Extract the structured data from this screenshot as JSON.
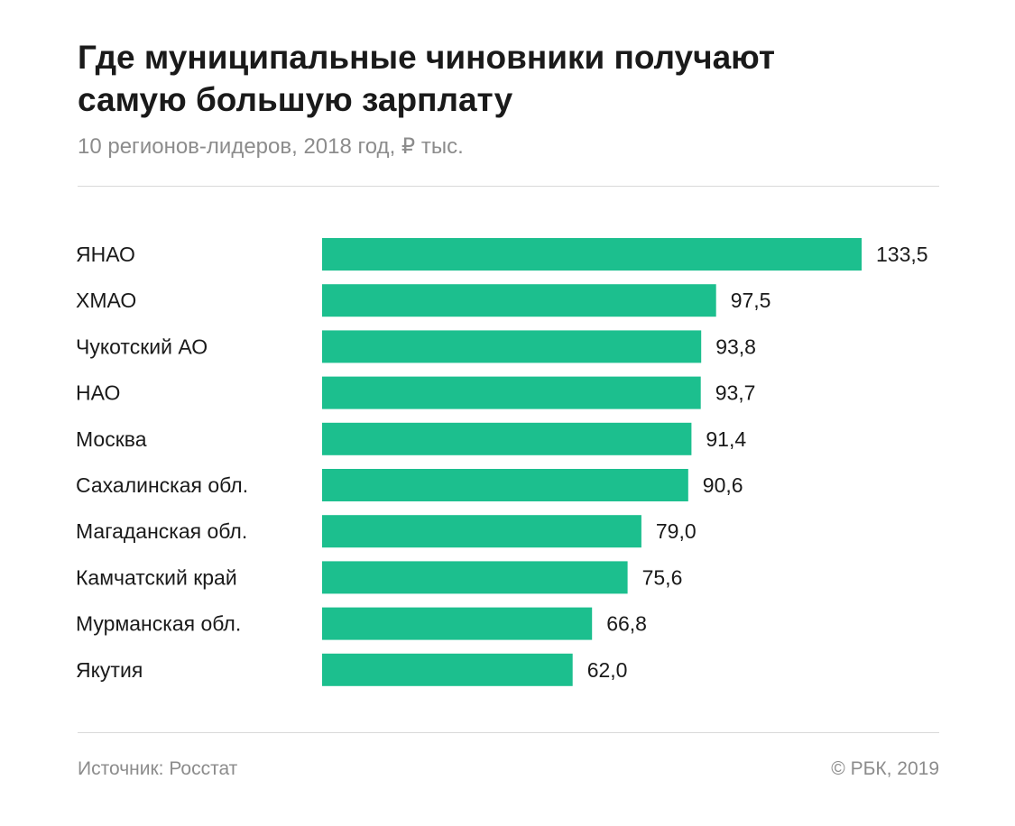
{
  "header": {
    "title_line1": "Где муниципальные чиновники получают",
    "title_line2": "самую большую зарплату",
    "subtitle": "10 регионов-лидеров, 2018 год, ₽ тыс."
  },
  "chart_data": {
    "type": "bar",
    "orientation": "horizontal",
    "title": "Где муниципальные чиновники получают самую большую зарплату",
    "subtitle": "10 регионов-лидеров, 2018 год, ₽ тыс.",
    "categories": [
      "ЯНАО",
      "ХМАО",
      "Чукотский АО",
      "НАО",
      "Москва",
      "Сахалинская обл.",
      "Магаданская обл.",
      "Камчатский край",
      "Мурманская обл.",
      "Якутия"
    ],
    "values": [
      133.5,
      97.5,
      93.8,
      93.7,
      91.4,
      90.6,
      79.0,
      75.6,
      66.8,
      62.0
    ],
    "value_labels": [
      "133,5",
      "97,5",
      "93,8",
      "93,7",
      "91,4",
      "90,6",
      "79,0",
      "75,6",
      "66,8",
      "62,0"
    ],
    "xlim": [
      0,
      133.5
    ],
    "bar_color": "#1cbf8e",
    "grid": false,
    "legend": "none"
  },
  "footer": {
    "source": "Источник: Росстат",
    "copyright": "© РБК, 2019"
  }
}
